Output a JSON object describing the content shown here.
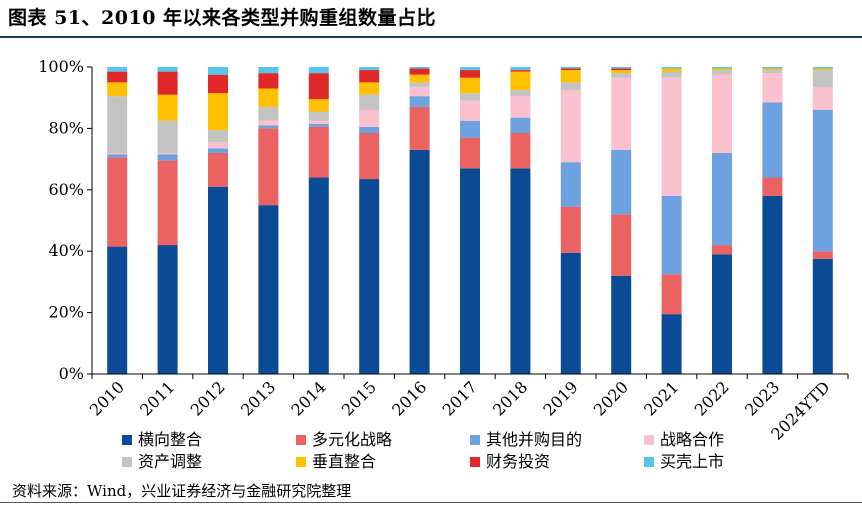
{
  "title": "图表 51、2010 年以来各类型并购重组数量占比",
  "source": "资料来源：Wind，兴业证券经济与金融研究院整理",
  "chart_data": {
    "type": "stacked-bar-100",
    "title": "图表 51、2010 年以来各类型并购重组数量占比",
    "categories": [
      "2010",
      "2011",
      "2012",
      "2013",
      "2014",
      "2015",
      "2016",
      "2017",
      "2018",
      "2019",
      "2020",
      "2021",
      "2022",
      "2023",
      "2024YTD"
    ],
    "ylim": [
      0,
      100
    ],
    "yticks": [
      "0%",
      "20%",
      "40%",
      "60%",
      "80%",
      "100%"
    ],
    "legend_position": "bottom",
    "series": [
      {
        "name": "横向整合",
        "color": "#0b4a94",
        "values": [
          41.5,
          42,
          61,
          55,
          64,
          63.5,
          73,
          67,
          67,
          39.5,
          32,
          19.5,
          39,
          58,
          37.5
        ]
      },
      {
        "name": "多元化战略",
        "color": "#ea6262",
        "values": [
          29,
          27.5,
          11,
          25,
          16.5,
          15,
          14,
          10,
          11.5,
          15,
          20,
          13,
          3,
          6,
          2.5
        ]
      },
      {
        "name": "其他并购目的",
        "color": "#6da1e0",
        "values": [
          1,
          2,
          1.5,
          1,
          1,
          2,
          3.5,
          5.5,
          5,
          14.5,
          21,
          25.5,
          30,
          24.5,
          46
        ]
      },
      {
        "name": "战略合作",
        "color": "#fbc1ce",
        "values": [
          0.5,
          0.5,
          2,
          1.5,
          1,
          5.5,
          3,
          6.5,
          7,
          23.5,
          23.5,
          38.5,
          25.5,
          9.5,
          7.5
        ]
      },
      {
        "name": "资产调整",
        "color": "#c3c3c3",
        "values": [
          18.5,
          10.5,
          4,
          4.5,
          3,
          5,
          1.5,
          2.5,
          2,
          2.5,
          1.5,
          2,
          1.5,
          1,
          5.5
        ]
      },
      {
        "name": "垂直整合",
        "color": "#ffc000",
        "values": [
          4.5,
          8.5,
          12,
          6,
          4,
          4,
          2.5,
          5,
          6,
          4,
          1,
          1,
          0.5,
          0.5,
          0.5
        ]
      },
      {
        "name": "财务投资",
        "color": "#e02828",
        "values": [
          3.5,
          7.5,
          6,
          5,
          8.5,
          4,
          2,
          2.5,
          0.5,
          0.5,
          0.5,
          0,
          0,
          0,
          0
        ]
      },
      {
        "name": "买壳上市",
        "color": "#56c5ec",
        "values": [
          1.5,
          1.5,
          2.5,
          2,
          2,
          1,
          0.5,
          1,
          1,
          0.5,
          0.5,
          0.5,
          0.5,
          0.5,
          0.5
        ]
      }
    ]
  }
}
